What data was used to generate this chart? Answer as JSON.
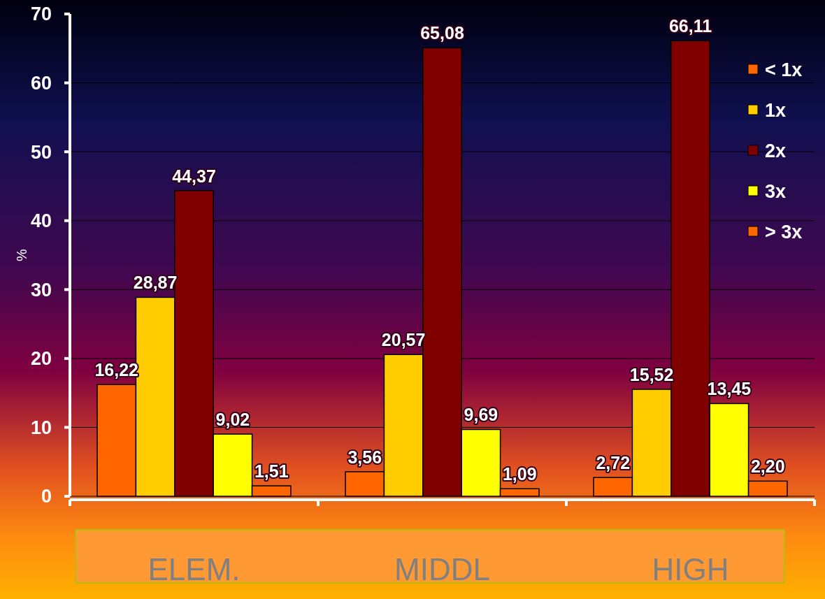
{
  "chart_data": {
    "type": "bar",
    "ylabel": "%",
    "categories": [
      "ELEM.",
      "MIDDL",
      "HIGH"
    ],
    "series": [
      {
        "name": "< 1x",
        "color": "#ff6600",
        "values": [
          16.22,
          3.56,
          2.72
        ],
        "value_labels": [
          "16,22",
          "3,56",
          "2,72"
        ]
      },
      {
        "name": "1x",
        "color": "#ffcc00",
        "values": [
          28.87,
          20.57,
          15.52
        ],
        "value_labels": [
          "28,87",
          "20,57",
          "15,52"
        ]
      },
      {
        "name": "2x",
        "color": "#800000",
        "values": [
          44.37,
          65.08,
          66.11
        ],
        "value_labels": [
          "44,37",
          "65,08",
          "66,11"
        ]
      },
      {
        "name": "3x",
        "color": "#ffff00",
        "values": [
          9.02,
          9.69,
          13.45
        ],
        "value_labels": [
          "9,02",
          "9,69",
          "13,45"
        ]
      },
      {
        "name": "> 3x",
        "color": "#ff6600",
        "values": [
          1.51,
          1.09,
          2.2
        ],
        "value_labels": [
          "1,51",
          "1,09",
          "2,20"
        ]
      }
    ],
    "ylim": [
      0,
      70
    ],
    "yticks": [
      0,
      10,
      20,
      30,
      40,
      50,
      60,
      70
    ],
    "grid": "y",
    "legend": "top right"
  }
}
